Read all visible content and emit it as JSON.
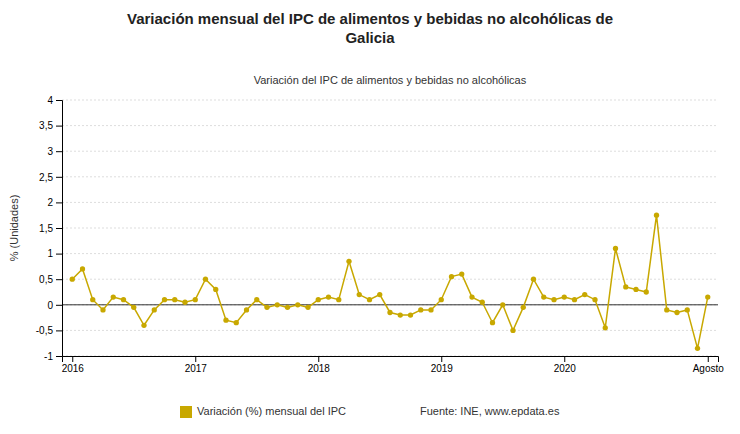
{
  "chart_data": {
    "type": "line",
    "title": "Variación mensual del IPC de alimentos y bebidas no alcohólicas de\nGalicia",
    "subtitle": "Variación del IPC de alimentos y bebidas no alcohólicas",
    "y_label": "% (Unidades)",
    "source": "Fuente: INE, www.epdata.es",
    "categories": [
      "2016",
      null,
      null,
      null,
      null,
      null,
      null,
      null,
      null,
      null,
      null,
      null,
      "2017",
      null,
      null,
      null,
      null,
      null,
      null,
      null,
      null,
      null,
      null,
      null,
      "2018",
      null,
      null,
      null,
      null,
      null,
      null,
      null,
      null,
      null,
      null,
      null,
      "2019",
      null,
      null,
      null,
      null,
      null,
      null,
      null,
      null,
      null,
      null,
      null,
      "2020",
      null,
      null,
      null,
      null,
      null,
      null,
      null,
      null,
      null,
      null,
      null,
      null,
      null,
      "Agosto"
    ],
    "series": [
      {
        "name": "Variación (%) mensual del IPC",
        "color": "#C8A800",
        "marker": "circle",
        "line_style": "solid",
        "values": [
          0.5,
          0.7,
          0.1,
          -0.1,
          0.15,
          0.1,
          -0.05,
          -0.4,
          -0.1,
          0.1,
          0.1,
          0.05,
          0.1,
          0.5,
          0.3,
          -0.3,
          -0.35,
          -0.1,
          0.1,
          -0.05,
          0.0,
          -0.05,
          0.0,
          -0.05,
          0.1,
          0.15,
          0.1,
          0.85,
          0.2,
          0.1,
          0.2,
          -0.15,
          -0.2,
          -0.2,
          -0.1,
          -0.1,
          0.1,
          0.55,
          0.6,
          0.15,
          0.05,
          -0.35,
          0.0,
          -0.5,
          -0.05,
          0.5,
          0.15,
          0.1,
          0.15,
          0.1,
          0.2,
          0.1,
          -0.45,
          1.1,
          0.35,
          0.3,
          0.25,
          1.75,
          -0.1,
          -0.15,
          -0.1,
          -0.85,
          0.15
        ]
      }
    ],
    "ylim": [
      -1,
      4
    ],
    "yticks": [
      -1,
      {
        "value": -0.5,
        "label": "-0,5"
      },
      0,
      {
        "value": 0.5,
        "label": "0,5"
      },
      1,
      {
        "value": 1.5,
        "label": "1,5"
      },
      2,
      {
        "value": 2.5,
        "label": "2,5"
      },
      3,
      {
        "value": 3.5,
        "label": "3,5"
      },
      4
    ],
    "grid": true,
    "legend": "bottom"
  }
}
